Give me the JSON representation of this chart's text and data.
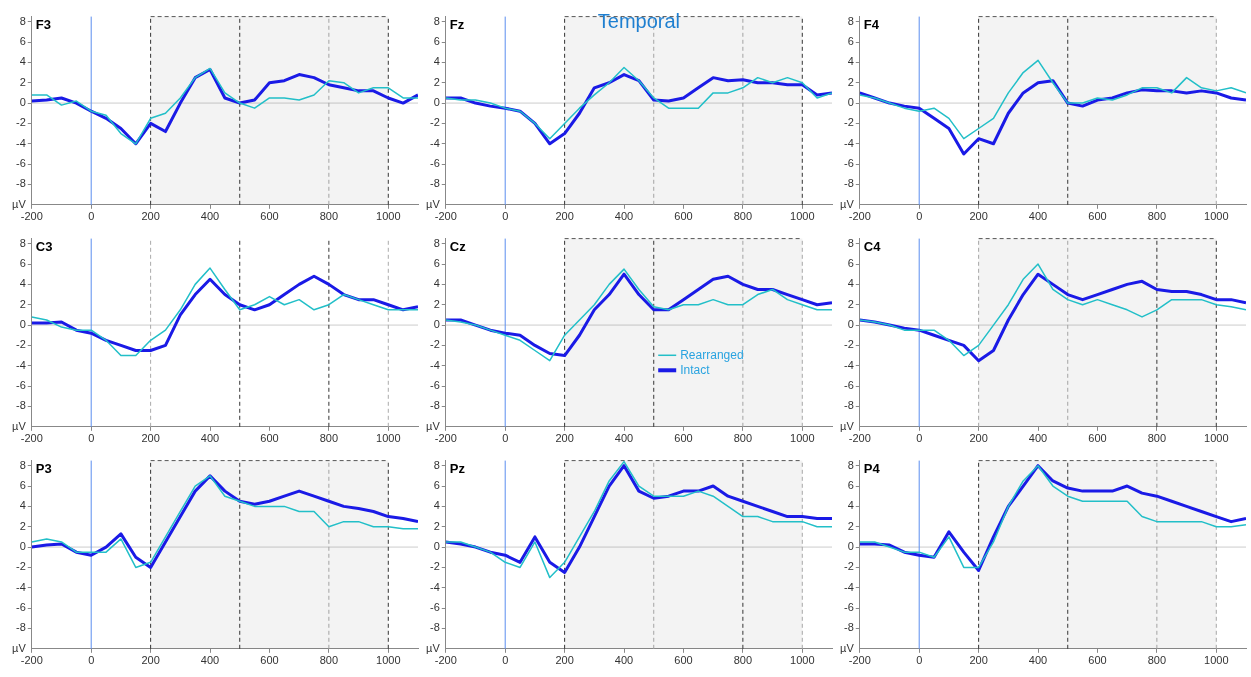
{
  "chart_data": [
    {
      "type": "line",
      "title": "F3",
      "ylabel": "µV",
      "x": [
        -200,
        -150,
        -100,
        -50,
        0,
        50,
        100,
        150,
        200,
        250,
        300,
        350,
        400,
        450,
        500,
        550,
        600,
        650,
        700,
        750,
        800,
        850,
        900,
        950,
        1000,
        1050,
        1100
      ],
      "xlim": [
        -200,
        1100
      ],
      "xticks": [
        -200,
        0,
        200,
        400,
        600,
        800,
        1000
      ],
      "ylim": [
        -10,
        8.5
      ],
      "yticks": [
        -8,
        -6,
        -4,
        -2,
        0,
        2,
        4,
        6,
        8
      ],
      "legend": false,
      "marker": "none",
      "series": [
        {
          "color": "#22bfc8",
          "values": [
            0.8,
            0.8,
            -0.2,
            0.2,
            -0.8,
            -1.2,
            -3,
            -4,
            -1.5,
            -1,
            0.5,
            2.5,
            3.4,
            1,
            0,
            -0.5,
            0.5,
            0.5,
            0.3,
            0.8,
            2.2,
            2,
            1,
            1.5,
            1.5,
            0.5,
            0.5
          ]
        },
        {
          "color": "#1a1ae6",
          "values": [
            0.2,
            0.3,
            0.5,
            0,
            -0.8,
            -1.5,
            -2.5,
            -4,
            -2,
            -2.8,
            0,
            2.5,
            3.3,
            0.5,
            0,
            0.3,
            2,
            2.2,
            2.8,
            2.5,
            1.8,
            1.5,
            1.2,
            1.2,
            0.5,
            0,
            0.8
          ]
        }
      ],
      "ref_lines": [
        {
          "axis": "y",
          "value": 0,
          "color": "#cccccc"
        },
        {
          "axis": "x",
          "value": 0,
          "color": "#5b8def"
        },
        {
          "axis": "x",
          "value": 200,
          "color": "#333333",
          "line_style": "dashed"
        },
        {
          "axis": "x",
          "value": 500,
          "color": "#333333",
          "line_style": "dashed"
        },
        {
          "axis": "x",
          "value": 800,
          "color": "#aaaaaa",
          "line_style": "dashed"
        },
        {
          "axis": "x",
          "value": 1000,
          "color": "#333333",
          "line_style": "dashed"
        }
      ],
      "bands": [
        {
          "axis": "x",
          "from": 200,
          "to": 1000,
          "color": "#555555"
        }
      ]
    },
    {
      "type": "line",
      "title": "Fz",
      "ylabel": "µV",
      "annotations": [
        "Temporal"
      ],
      "x": [
        -200,
        -150,
        -100,
        -50,
        0,
        50,
        100,
        150,
        200,
        250,
        300,
        350,
        400,
        450,
        500,
        550,
        600,
        650,
        700,
        750,
        800,
        850,
        900,
        950,
        1000,
        1050,
        1100
      ],
      "xlim": [
        -200,
        1100
      ],
      "xticks": [
        -200,
        0,
        200,
        400,
        600,
        800,
        1000
      ],
      "ylim": [
        -10,
        8.5
      ],
      "yticks": [
        -8,
        -6,
        -4,
        -2,
        0,
        2,
        4,
        6,
        8
      ],
      "legend": false,
      "marker": "none",
      "series": [
        {
          "color": "#22bfc8",
          "values": [
            0.5,
            0.3,
            0.3,
            0,
            -0.5,
            -0.8,
            -2,
            -3.5,
            -2,
            -0.5,
            0.8,
            2,
            3.5,
            2.2,
            0.5,
            -0.5,
            -0.5,
            -0.5,
            1,
            1,
            1.5,
            2.5,
            2,
            2.5,
            2,
            0.5,
            1
          ]
        },
        {
          "color": "#1a1ae6",
          "values": [
            0.5,
            0.5,
            0,
            -0.3,
            -0.5,
            -0.8,
            -2,
            -4,
            -3,
            -1,
            1.5,
            2,
            2.8,
            2.2,
            0.3,
            0.2,
            0.5,
            1.5,
            2.5,
            2.2,
            2.3,
            2,
            2,
            1.8,
            1.8,
            0.8,
            1
          ]
        }
      ],
      "ref_lines": [
        {
          "axis": "y",
          "value": 0,
          "color": "#cccccc"
        },
        {
          "axis": "x",
          "value": 0,
          "color": "#5b8def"
        },
        {
          "axis": "x",
          "value": 200,
          "color": "#333333",
          "line_style": "dashed"
        },
        {
          "axis": "x",
          "value": 500,
          "color": "#aaaaaa",
          "line_style": "dashed"
        },
        {
          "axis": "x",
          "value": 800,
          "color": "#aaaaaa",
          "line_style": "dashed"
        },
        {
          "axis": "x",
          "value": 1000,
          "color": "#333333",
          "line_style": "dashed"
        }
      ],
      "bands": [
        {
          "axis": "x",
          "from": 200,
          "to": 1000,
          "color": "#555555"
        }
      ]
    },
    {
      "type": "line",
      "title": "F4",
      "ylabel": "µV",
      "x": [
        -200,
        -150,
        -100,
        -50,
        0,
        50,
        100,
        150,
        200,
        250,
        300,
        350,
        400,
        450,
        500,
        550,
        600,
        650,
        700,
        750,
        800,
        850,
        900,
        950,
        1000,
        1050,
        1100
      ],
      "xlim": [
        -200,
        1100
      ],
      "xticks": [
        -200,
        0,
        200,
        400,
        600,
        800,
        1000
      ],
      "ylim": [
        -10,
        8.5
      ],
      "yticks": [
        -8,
        -6,
        -4,
        -2,
        0,
        2,
        4,
        6,
        8
      ],
      "legend": false,
      "marker": "none",
      "series": [
        {
          "color": "#22bfc8",
          "values": [
            0.8,
            0.5,
            0,
            -0.5,
            -0.8,
            -0.5,
            -1.5,
            -3.5,
            -2.5,
            -1.5,
            1,
            3,
            4.2,
            2,
            0,
            0,
            0.5,
            0.3,
            0.8,
            1.5,
            1.5,
            1,
            2.5,
            1.5,
            1.2,
            1.5,
            1
          ]
        },
        {
          "color": "#1a1ae6",
          "values": [
            1,
            0.5,
            0,
            -0.3,
            -0.5,
            -1.5,
            -2.5,
            -5,
            -3.5,
            -4,
            -1,
            1,
            2,
            2.2,
            0,
            -0.3,
            0.3,
            0.5,
            1,
            1.3,
            1.2,
            1.2,
            1,
            1.2,
            1,
            0.5,
            0.3
          ]
        }
      ],
      "ref_lines": [
        {
          "axis": "y",
          "value": 0,
          "color": "#cccccc"
        },
        {
          "axis": "x",
          "value": 0,
          "color": "#5b8def"
        },
        {
          "axis": "x",
          "value": 200,
          "color": "#333333",
          "line_style": "dashed"
        },
        {
          "axis": "x",
          "value": 500,
          "color": "#333333",
          "line_style": "dashed"
        },
        {
          "axis": "x",
          "value": 1000,
          "color": "#aaaaaa",
          "line_style": "dashed"
        }
      ],
      "bands": [
        {
          "axis": "x",
          "from": 200,
          "to": 1000,
          "color": "#555555"
        }
      ]
    },
    {
      "type": "line",
      "title": "C3",
      "ylabel": "µV",
      "x": [
        -200,
        -150,
        -100,
        -50,
        0,
        50,
        100,
        150,
        200,
        250,
        300,
        350,
        400,
        450,
        500,
        550,
        600,
        650,
        700,
        750,
        800,
        850,
        900,
        950,
        1000,
        1050,
        1100
      ],
      "xlim": [
        -200,
        1100
      ],
      "xticks": [
        -200,
        0,
        200,
        400,
        600,
        800,
        1000
      ],
      "ylim": [
        -10,
        8.5
      ],
      "yticks": [
        -8,
        -6,
        -4,
        -2,
        0,
        2,
        4,
        6,
        8
      ],
      "legend": false,
      "marker": "none",
      "series": [
        {
          "color": "#22bfc8",
          "values": [
            0.8,
            0.5,
            -0.2,
            -0.5,
            -0.5,
            -1.5,
            -3,
            -3,
            -1.5,
            -0.5,
            1.5,
            4,
            5.6,
            3.5,
            1.5,
            2,
            2.8,
            2,
            2.5,
            1.5,
            2,
            3,
            2.5,
            2,
            1.5,
            1.5,
            1.5
          ]
        },
        {
          "color": "#1a1ae6",
          "values": [
            0.2,
            0.2,
            0.3,
            -0.5,
            -0.8,
            -1.5,
            -2,
            -2.5,
            -2.5,
            -2,
            1,
            3,
            4.5,
            3,
            2,
            1.5,
            2,
            3,
            4,
            4.8,
            4,
            3,
            2.5,
            2.5,
            2,
            1.5,
            1.8
          ]
        }
      ],
      "ref_lines": [
        {
          "axis": "y",
          "value": 0,
          "color": "#cccccc"
        },
        {
          "axis": "x",
          "value": 0,
          "color": "#5b8def"
        },
        {
          "axis": "x",
          "value": 200,
          "color": "#aaaaaa",
          "line_style": "dashed"
        },
        {
          "axis": "x",
          "value": 500,
          "color": "#333333",
          "line_style": "dashed"
        },
        {
          "axis": "x",
          "value": 800,
          "color": "#333333",
          "line_style": "dashed"
        },
        {
          "axis": "x",
          "value": 1000,
          "color": "#aaaaaa",
          "line_style": "dashed"
        }
      ]
    },
    {
      "type": "line",
      "title": "Cz",
      "ylabel": "µV",
      "x": [
        -200,
        -150,
        -100,
        -50,
        0,
        50,
        100,
        150,
        200,
        250,
        300,
        350,
        400,
        450,
        500,
        550,
        600,
        650,
        700,
        750,
        800,
        850,
        900,
        950,
        1000,
        1050,
        1100
      ],
      "xlim": [
        -200,
        1100
      ],
      "xticks": [
        -200,
        0,
        200,
        400,
        600,
        800,
        1000
      ],
      "ylim": [
        -10,
        8.5
      ],
      "yticks": [
        -8,
        -6,
        -4,
        -2,
        0,
        2,
        4,
        6,
        8
      ],
      "legend": "center",
      "marker": "none",
      "series": [
        {
          "name": "Rearranged",
          "color": "#22bfc8",
          "values": [
            0.5,
            0.3,
            0,
            -0.5,
            -1,
            -1.5,
            -2.5,
            -3.5,
            -1,
            0.5,
            2,
            4,
            5.5,
            3.5,
            1.8,
            1.5,
            2,
            2,
            2.5,
            2,
            2,
            3,
            3.5,
            2.5,
            2,
            1.5,
            1.5
          ]
        },
        {
          "name": "Intact",
          "color": "#1a1ae6",
          "values": [
            0.5,
            0.5,
            0,
            -0.5,
            -0.8,
            -1,
            -2,
            -2.8,
            -3,
            -1,
            1.5,
            3,
            5,
            3,
            1.5,
            1.5,
            2.5,
            3.5,
            4.5,
            4.8,
            4,
            3.5,
            3.5,
            3,
            2.5,
            2,
            2.2
          ]
        }
      ],
      "ref_lines": [
        {
          "axis": "y",
          "value": 0,
          "color": "#cccccc"
        },
        {
          "axis": "x",
          "value": 0,
          "color": "#5b8def"
        },
        {
          "axis": "x",
          "value": 200,
          "color": "#333333",
          "line_style": "dashed"
        },
        {
          "axis": "x",
          "value": 500,
          "color": "#333333",
          "line_style": "dashed"
        },
        {
          "axis": "x",
          "value": 800,
          "color": "#aaaaaa",
          "line_style": "dashed"
        },
        {
          "axis": "x",
          "value": 1000,
          "color": "#aaaaaa",
          "line_style": "dashed"
        }
      ],
      "bands": [
        {
          "axis": "x",
          "from": 200,
          "to": 1000,
          "color": "#555555"
        }
      ]
    },
    {
      "type": "line",
      "title": "C4",
      "ylabel": "µV",
      "x": [
        -200,
        -150,
        -100,
        -50,
        0,
        50,
        100,
        150,
        200,
        250,
        300,
        350,
        400,
        450,
        500,
        550,
        600,
        650,
        700,
        750,
        800,
        850,
        900,
        950,
        1000,
        1050,
        1100
      ],
      "xlim": [
        -200,
        1100
      ],
      "xticks": [
        -200,
        0,
        200,
        400,
        600,
        800,
        1000
      ],
      "ylim": [
        -10,
        8.5
      ],
      "yticks": [
        -8,
        -6,
        -4,
        -2,
        0,
        2,
        4,
        6,
        8
      ],
      "legend": false,
      "marker": "none",
      "series": [
        {
          "color": "#22bfc8",
          "values": [
            0.5,
            0.3,
            0,
            -0.5,
            -0.5,
            -0.5,
            -1.5,
            -3,
            -2,
            0,
            2,
            4.5,
            6,
            3.5,
            2.5,
            2,
            2.5,
            2,
            1.5,
            0.8,
            1.5,
            2.5,
            2.5,
            2.5,
            2,
            1.8,
            1.5
          ]
        },
        {
          "color": "#1a1ae6",
          "values": [
            0.5,
            0.3,
            0,
            -0.3,
            -0.5,
            -1,
            -1.5,
            -2,
            -3.5,
            -2.5,
            0.5,
            3,
            5,
            4,
            3,
            2.5,
            3,
            3.5,
            4,
            4.3,
            3.5,
            3.3,
            3.3,
            3,
            2.5,
            2.5,
            2.2
          ]
        }
      ],
      "ref_lines": [
        {
          "axis": "y",
          "value": 0,
          "color": "#cccccc"
        },
        {
          "axis": "x",
          "value": 0,
          "color": "#5b8def"
        },
        {
          "axis": "x",
          "value": 200,
          "color": "#aaaaaa",
          "line_style": "dashed"
        },
        {
          "axis": "x",
          "value": 500,
          "color": "#aaaaaa",
          "line_style": "dashed"
        },
        {
          "axis": "x",
          "value": 800,
          "color": "#333333",
          "line_style": "dashed"
        },
        {
          "axis": "x",
          "value": 1000,
          "color": "#333333",
          "line_style": "dashed"
        }
      ],
      "bands": [
        {
          "axis": "x",
          "from": 200,
          "to": 1000,
          "color": "#555555"
        }
      ]
    },
    {
      "type": "line",
      "title": "P3",
      "ylabel": "µV",
      "x": [
        -200,
        -150,
        -100,
        -50,
        0,
        50,
        100,
        150,
        200,
        250,
        300,
        350,
        400,
        450,
        500,
        550,
        600,
        650,
        700,
        750,
        800,
        850,
        900,
        950,
        1000,
        1050,
        1100
      ],
      "xlim": [
        -200,
        1100
      ],
      "xticks": [
        -200,
        0,
        200,
        400,
        600,
        800,
        1000
      ],
      "ylim": [
        -10,
        8.5
      ],
      "yticks": [
        -8,
        -6,
        -4,
        -2,
        0,
        2,
        4,
        6,
        8
      ],
      "legend": false,
      "marker": "none",
      "series": [
        {
          "color": "#22bfc8",
          "values": [
            0.5,
            0.8,
            0.5,
            -0.5,
            -0.5,
            -0.5,
            0.8,
            -2,
            -1.5,
            1,
            3.5,
            6,
            7,
            5,
            4.5,
            4,
            4,
            4,
            3.5,
            3.5,
            2,
            2.5,
            2.5,
            2,
            2,
            1.8,
            1.8
          ]
        },
        {
          "color": "#1a1ae6",
          "values": [
            0,
            0.2,
            0.3,
            -0.5,
            -0.8,
            0,
            1.3,
            -1,
            -2,
            0.5,
            3,
            5.5,
            7,
            5.5,
            4.5,
            4.2,
            4.5,
            5,
            5.5,
            5,
            4.5,
            4,
            3.8,
            3.5,
            3,
            2.8,
            2.5
          ]
        }
      ],
      "ref_lines": [
        {
          "axis": "y",
          "value": 0,
          "color": "#cccccc"
        },
        {
          "axis": "x",
          "value": 0,
          "color": "#5b8def"
        },
        {
          "axis": "x",
          "value": 200,
          "color": "#333333",
          "line_style": "dashed"
        },
        {
          "axis": "x",
          "value": 500,
          "color": "#333333",
          "line_style": "dashed"
        },
        {
          "axis": "x",
          "value": 800,
          "color": "#aaaaaa",
          "line_style": "dashed"
        },
        {
          "axis": "x",
          "value": 1000,
          "color": "#333333",
          "line_style": "dashed"
        }
      ],
      "bands": [
        {
          "axis": "x",
          "from": 200,
          "to": 1000,
          "color": "#555555"
        }
      ]
    },
    {
      "type": "line",
      "title": "Pz",
      "ylabel": "µV",
      "x": [
        -200,
        -150,
        -100,
        -50,
        0,
        50,
        100,
        150,
        200,
        250,
        300,
        350,
        400,
        450,
        500,
        550,
        600,
        650,
        700,
        750,
        800,
        850,
        900,
        950,
        1000,
        1050,
        1100
      ],
      "xlim": [
        -200,
        1100
      ],
      "xticks": [
        -200,
        0,
        200,
        400,
        600,
        800,
        1000
      ],
      "ylim": [
        -10,
        8.5
      ],
      "yticks": [
        -8,
        -6,
        -4,
        -2,
        0,
        2,
        4,
        6,
        8
      ],
      "legend": false,
      "marker": "none",
      "series": [
        {
          "color": "#22bfc8",
          "values": [
            0.5,
            0.5,
            0,
            -0.5,
            -1.5,
            -2,
            0.5,
            -3,
            -1.5,
            1,
            3.5,
            6.5,
            8.4,
            6,
            5,
            5,
            5,
            5.5,
            5,
            4,
            3,
            3,
            2.5,
            2.5,
            2.5,
            2,
            2
          ]
        },
        {
          "color": "#1a1ae6",
          "values": [
            0.5,
            0.3,
            0,
            -0.5,
            -0.8,
            -1.5,
            1,
            -1.5,
            -2.5,
            0,
            3,
            6,
            8,
            5.5,
            4.8,
            5,
            5.5,
            5.5,
            6,
            5,
            4.5,
            4,
            3.5,
            3,
            3,
            2.8,
            2.8
          ]
        }
      ],
      "ref_lines": [
        {
          "axis": "y",
          "value": 0,
          "color": "#cccccc"
        },
        {
          "axis": "x",
          "value": 0,
          "color": "#5b8def"
        },
        {
          "axis": "x",
          "value": 200,
          "color": "#333333",
          "line_style": "dashed"
        },
        {
          "axis": "x",
          "value": 500,
          "color": "#aaaaaa",
          "line_style": "dashed"
        },
        {
          "axis": "x",
          "value": 800,
          "color": "#333333",
          "line_style": "dashed"
        },
        {
          "axis": "x",
          "value": 1000,
          "color": "#aaaaaa",
          "line_style": "dashed"
        }
      ],
      "bands": [
        {
          "axis": "x",
          "from": 200,
          "to": 1000,
          "color": "#555555"
        }
      ]
    },
    {
      "type": "line",
      "title": "P4",
      "ylabel": "µV",
      "x": [
        -200,
        -150,
        -100,
        -50,
        0,
        50,
        100,
        150,
        200,
        250,
        300,
        350,
        400,
        450,
        500,
        550,
        600,
        650,
        700,
        750,
        800,
        850,
        900,
        950,
        1000,
        1050,
        1100
      ],
      "xlim": [
        -200,
        1100
      ],
      "xticks": [
        -200,
        0,
        200,
        400,
        600,
        800,
        1000
      ],
      "ylim": [
        -10,
        8.5
      ],
      "yticks": [
        -8,
        -6,
        -4,
        -2,
        0,
        2,
        4,
        6,
        8
      ],
      "legend": false,
      "marker": "none",
      "series": [
        {
          "color": "#22bfc8",
          "values": [
            0.5,
            0.5,
            0,
            -0.5,
            -0.5,
            -1,
            1,
            -2,
            -2,
            0.5,
            4,
            6.5,
            8,
            6,
            5,
            4.5,
            4.5,
            4.5,
            4.5,
            3,
            2.5,
            2.5,
            2.5,
            2.5,
            2,
            2,
            2.2
          ]
        },
        {
          "color": "#1a1ae6",
          "values": [
            0.3,
            0.3,
            0.2,
            -0.5,
            -0.8,
            -1,
            1.5,
            -0.5,
            -2.3,
            1,
            4,
            6,
            8,
            6.5,
            5.8,
            5.5,
            5.5,
            5.5,
            6,
            5.3,
            5,
            4.5,
            4,
            3.5,
            3,
            2.5,
            2.8
          ]
        }
      ],
      "ref_lines": [
        {
          "axis": "y",
          "value": 0,
          "color": "#cccccc"
        },
        {
          "axis": "x",
          "value": 0,
          "color": "#5b8def"
        },
        {
          "axis": "x",
          "value": 200,
          "color": "#333333",
          "line_style": "dashed"
        },
        {
          "axis": "x",
          "value": 500,
          "color": "#333333",
          "line_style": "dashed"
        },
        {
          "axis": "x",
          "value": 800,
          "color": "#aaaaaa",
          "line_style": "dashed"
        },
        {
          "axis": "x",
          "value": 1000,
          "color": "#aaaaaa",
          "line_style": "dashed"
        }
      ],
      "bands": [
        {
          "axis": "x",
          "from": 200,
          "to": 1000,
          "color": "#555555"
        }
      ]
    }
  ]
}
